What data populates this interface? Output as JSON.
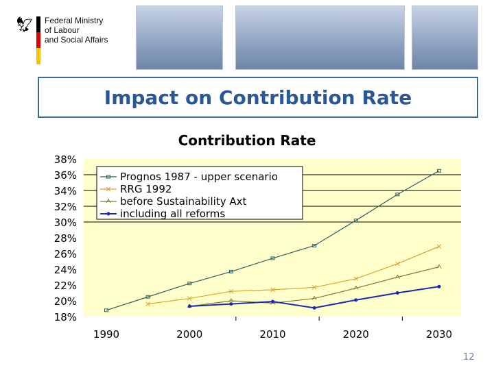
{
  "header": {
    "ministry_lines": [
      "Federal Ministry",
      "of Labour",
      "and Social Affairs"
    ],
    "slide_title": "Impact on Contribution Rate"
  },
  "page_number": "12",
  "chart_data": {
    "type": "line",
    "title": "Contribution Rate",
    "xlabel": "",
    "ylabel": "",
    "x": [
      1990,
      1995,
      2000,
      2005,
      2010,
      2015,
      2020,
      2025,
      2030
    ],
    "xticks": [
      "1990",
      "2000",
      "2010",
      "2020",
      "2030"
    ],
    "yticks": [
      "18%",
      "20%",
      "22%",
      "24%",
      "26%",
      "28%",
      "30%",
      "32%",
      "34%",
      "36%",
      "38%"
    ],
    "ylim": [
      18,
      38
    ],
    "legend": "top-left",
    "plot_background": "#ffffcc",
    "series": [
      {
        "name": "Prognos 1987 - upper scenario",
        "color": "#2f5f5f",
        "marker": "square",
        "values": [
          18.8,
          20.5,
          22.2,
          23.7,
          25.4,
          27.0,
          30.2,
          33.5,
          36.5
        ]
      },
      {
        "name": "RRG 1992",
        "color": "#e0a030",
        "marker": "x",
        "values": [
          null,
          19.6,
          20.3,
          21.2,
          21.4,
          21.7,
          22.8,
          24.7,
          26.9
        ]
      },
      {
        "name": "before Sustainability Axt",
        "color": "#7a7a30",
        "marker": "triangle",
        "values": [
          null,
          null,
          19.3,
          20.0,
          19.7,
          20.3,
          21.6,
          23.0,
          24.3
        ]
      },
      {
        "name": "including all reforms",
        "color": "#1a2ab0",
        "marker": "dot",
        "values": [
          null,
          null,
          19.3,
          19.6,
          19.9,
          19.1,
          20.1,
          21.0,
          21.8
        ]
      }
    ]
  }
}
